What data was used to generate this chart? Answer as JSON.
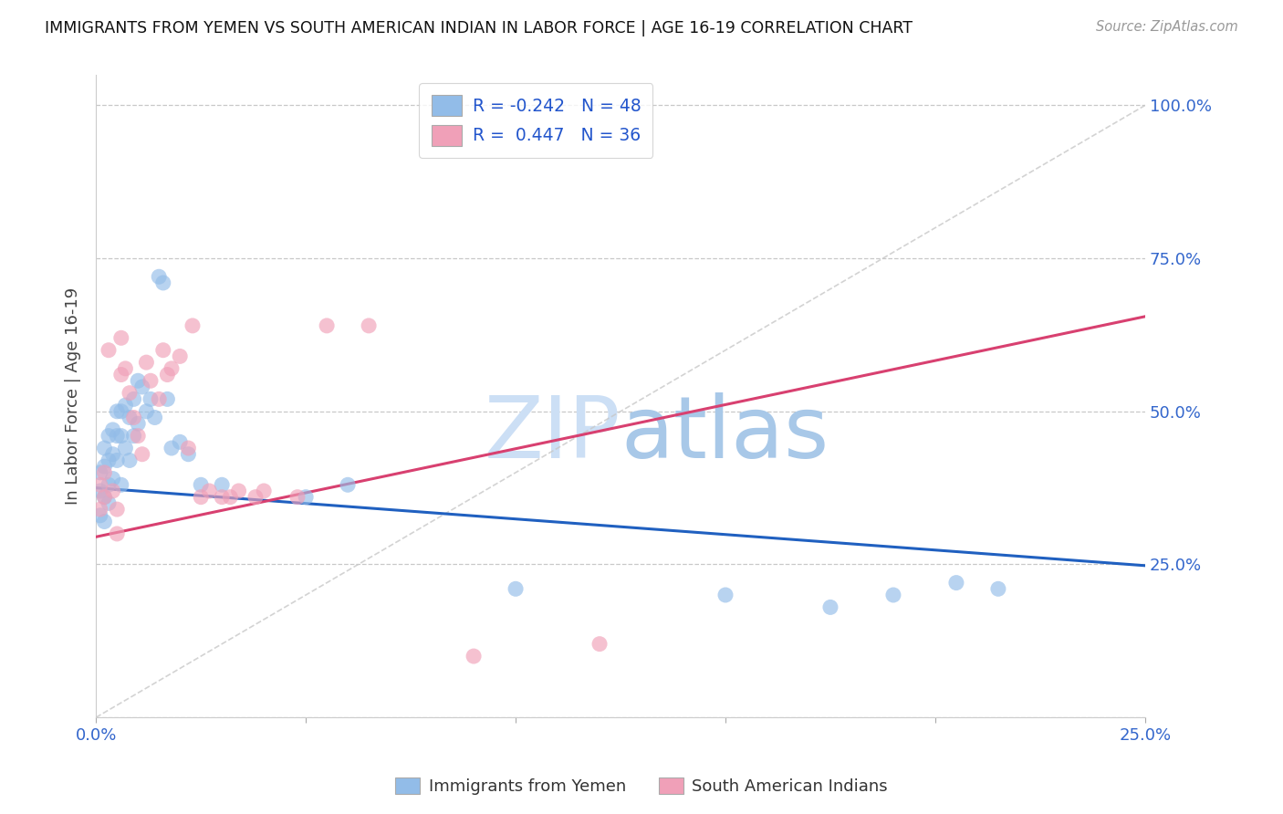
{
  "title": "IMMIGRANTS FROM YEMEN VS SOUTH AMERICAN INDIAN IN LABOR FORCE | AGE 16-19 CORRELATION CHART",
  "source": "Source: ZipAtlas.com",
  "ylabel": "In Labor Force | Age 16-19",
  "x_min": 0.0,
  "x_max": 0.25,
  "y_min": 0.0,
  "y_max": 1.05,
  "blue_color": "#92bce8",
  "pink_color": "#f0a0b8",
  "blue_line_color": "#2060c0",
  "pink_line_color": "#d84070",
  "diag_color": "#c8c8c8",
  "watermark_color": "#ccdff5",
  "legend_label1": "R = -0.242   N = 48",
  "legend_label2": "R =  0.447   N = 36",
  "bottom_label1": "Immigrants from Yemen",
  "bottom_label2": "South American Indians",
  "blue_line_y0": 0.375,
  "blue_line_y1": 0.248,
  "pink_line_y0": 0.295,
  "pink_line_y1": 0.655,
  "blue_x": [
    0.001,
    0.001,
    0.001,
    0.002,
    0.002,
    0.002,
    0.002,
    0.003,
    0.003,
    0.003,
    0.003,
    0.004,
    0.004,
    0.004,
    0.005,
    0.005,
    0.005,
    0.006,
    0.006,
    0.006,
    0.007,
    0.007,
    0.008,
    0.008,
    0.009,
    0.009,
    0.01,
    0.01,
    0.011,
    0.012,
    0.013,
    0.014,
    0.015,
    0.016,
    0.017,
    0.018,
    0.02,
    0.022,
    0.025,
    0.03,
    0.05,
    0.06,
    0.1,
    0.15,
    0.175,
    0.19,
    0.205,
    0.215
  ],
  "blue_y": [
    0.37,
    0.4,
    0.33,
    0.44,
    0.41,
    0.36,
    0.32,
    0.46,
    0.42,
    0.38,
    0.35,
    0.47,
    0.43,
    0.39,
    0.5,
    0.46,
    0.42,
    0.5,
    0.46,
    0.38,
    0.51,
    0.44,
    0.49,
    0.42,
    0.52,
    0.46,
    0.55,
    0.48,
    0.54,
    0.5,
    0.52,
    0.49,
    0.72,
    0.71,
    0.52,
    0.44,
    0.45,
    0.43,
    0.38,
    0.38,
    0.36,
    0.38,
    0.21,
    0.2,
    0.18,
    0.2,
    0.22,
    0.21
  ],
  "pink_x": [
    0.001,
    0.001,
    0.002,
    0.002,
    0.003,
    0.004,
    0.005,
    0.005,
    0.006,
    0.006,
    0.007,
    0.008,
    0.009,
    0.01,
    0.011,
    0.012,
    0.013,
    0.015,
    0.016,
    0.017,
    0.018,
    0.02,
    0.022,
    0.023,
    0.025,
    0.027,
    0.03,
    0.032,
    0.034,
    0.038,
    0.04,
    0.048,
    0.055,
    0.065,
    0.09,
    0.12
  ],
  "pink_y": [
    0.38,
    0.34,
    0.4,
    0.36,
    0.6,
    0.37,
    0.34,
    0.3,
    0.62,
    0.56,
    0.57,
    0.53,
    0.49,
    0.46,
    0.43,
    0.58,
    0.55,
    0.52,
    0.6,
    0.56,
    0.57,
    0.59,
    0.44,
    0.64,
    0.36,
    0.37,
    0.36,
    0.36,
    0.37,
    0.36,
    0.37,
    0.36,
    0.64,
    0.64,
    0.1,
    0.12
  ]
}
